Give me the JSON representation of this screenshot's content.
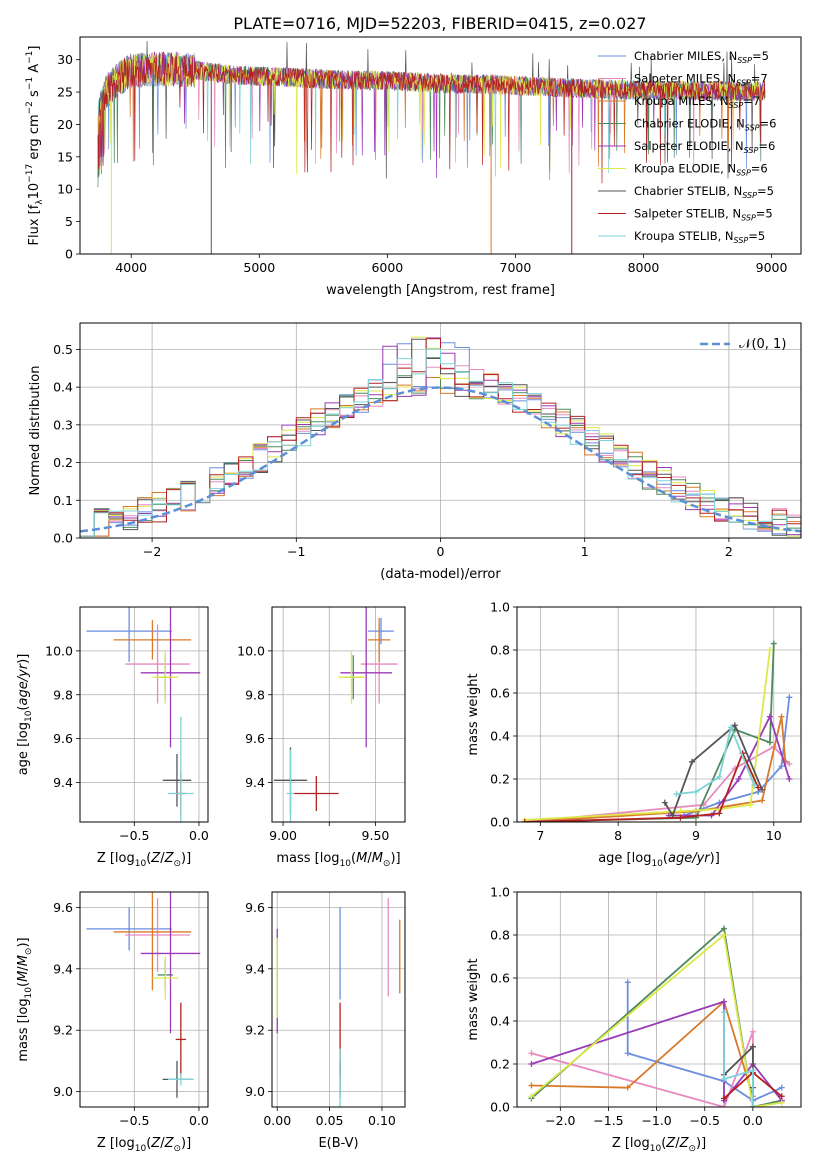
{
  "figure_title": "PLATE=0716, MJD=52203, FIBERID=0415, z=0.027",
  "series_colors": [
    "#6a8ee0",
    "#e88ac0",
    "#d87a2a",
    "#4e8a5e",
    "#9a3ab8",
    "#dde84a",
    "#555555",
    "#b22222",
    "#7fd3d8"
  ],
  "chart_data": [
    {
      "id": "spectrum",
      "type": "line",
      "xlabel": "wavelength [Angstrom, rest frame]",
      "ylabel": "Flux [f_λ 10^−17 erg cm^−2 s^−1 A^−1]",
      "xlim": [
        3600,
        9230
      ],
      "ylim": [
        0,
        33.5
      ],
      "xticks": [
        4000,
        5000,
        6000,
        7000,
        8000,
        9000
      ],
      "yticks": [
        0,
        5,
        10,
        15,
        20,
        25,
        30
      ],
      "grid": false,
      "legend_position": "upper right",
      "legend": [
        {
          "label": "Chabrier MILES, N",
          "sub": "SSP",
          "tail": "=5",
          "color": "#6a8ee0"
        },
        {
          "label": "Salpeter MILES, N",
          "sub": "SSP",
          "tail": "=7",
          "color": "#e88ac0"
        },
        {
          "label": "Kroupa MILES, N",
          "sub": "SSP",
          "tail": "=7",
          "color": "#d87a2a"
        },
        {
          "label": "Chabrier ELODIE, N",
          "sub": "SSP",
          "tail": "=6",
          "color": "#4e8a5e"
        },
        {
          "label": "Salpeter ELODIE, N",
          "sub": "SSP",
          "tail": "=6",
          "color": "#9a3ab8"
        },
        {
          "label": "Kroupa ELODIE, N",
          "sub": "SSP",
          "tail": "=6",
          "color": "#dde84a"
        },
        {
          "label": "Chabrier STELIB, N",
          "sub": "SSP",
          "tail": "=5",
          "color": "#555555"
        },
        {
          "label": "Salpeter STELIB, N",
          "sub": "SSP",
          "tail": "=5",
          "color": "#b22222"
        },
        {
          "label": "Kroupa STELIB, N",
          "sub": "SSP",
          "tail": "=5",
          "color": "#7fd3d8"
        }
      ],
      "continuum": [
        [
          3740,
          21
        ],
        [
          3800,
          25
        ],
        [
          3900,
          27
        ],
        [
          4000,
          28.3
        ],
        [
          4200,
          28.5
        ],
        [
          4500,
          28.4
        ],
        [
          4800,
          27.6
        ],
        [
          5200,
          27.3
        ],
        [
          5600,
          26.9
        ],
        [
          6000,
          26.8
        ],
        [
          6400,
          26.3
        ],
        [
          6800,
          26.2
        ],
        [
          7200,
          25.8
        ],
        [
          7600,
          25.5
        ],
        [
          8000,
          25.3
        ],
        [
          8400,
          25.2
        ],
        [
          8800,
          25.1
        ],
        [
          8950,
          25.3
        ]
      ],
      "wavelength_range": [
        3740,
        8950
      ],
      "drops": [
        [
          3845,
          0
        ],
        [
          4625,
          0
        ],
        [
          6810,
          0
        ],
        [
          7440,
          0
        ]
      ]
    },
    {
      "id": "residuals",
      "type": "histogram",
      "xlabel": "(data-model)/error",
      "ylabel": "Normed distribution",
      "xlim": [
        -2.5,
        2.5
      ],
      "ylim": [
        0,
        0.57
      ],
      "xticks": [
        -2,
        -1,
        0,
        1,
        2
      ],
      "xtick_labels": [
        "−2",
        "−1",
        "0",
        "1",
        "2"
      ],
      "yticks": [
        0,
        0.1,
        0.2,
        0.3,
        0.4,
        0.5
      ],
      "ytick_labels": [
        "0.0",
        "0.1",
        "0.2",
        "0.3",
        "0.4",
        "0.5"
      ],
      "grid": true,
      "bin_width": 0.1,
      "legend": [
        {
          "label": "𝒩(0, 1)",
          "color": "#5b8fd6",
          "style": "dashed"
        }
      ],
      "legend_position": "upper right",
      "gaussian": {
        "mean": 0,
        "sigma": 1,
        "color": "#5b8fd6"
      }
    },
    {
      "id": "age-vs-Z",
      "type": "errorbar",
      "xlabel": "Z [log10(Z/Z⊙)]",
      "ylabel": "age [log10(age/yr)]",
      "xlim": [
        -0.92,
        0.07
      ],
      "ylim": [
        9.22,
        10.2
      ],
      "xticks": [
        -0.5,
        0.0
      ],
      "xtick_labels": [
        "−0.5",
        "0.0"
      ],
      "yticks": [
        9.4,
        9.6,
        9.8,
        10.0
      ],
      "ytick_labels": [
        "9.4",
        "9.6",
        "9.8",
        "10.0"
      ],
      "grid": true,
      "points": [
        {
          "x": -0.54,
          "xerr": 0.33,
          "y": 10.09,
          "yerr": 0.14,
          "color": "#6a8ee0"
        },
        {
          "x": -0.32,
          "xerr": 0.25,
          "y": 9.94,
          "yerr": 0.18,
          "color": "#e88ac0"
        },
        {
          "x": -0.36,
          "xerr": 0.3,
          "y": 10.05,
          "yerr": 0.09,
          "color": "#d87a2a"
        },
        {
          "x": -0.26,
          "xerr": 0.06,
          "y": 9.88,
          "yerr": 0.1,
          "color": "#4e8a5e"
        },
        {
          "x": -0.22,
          "xerr": 0.23,
          "y": 9.9,
          "yerr": 0.34,
          "color": "#9a3ab8"
        },
        {
          "x": -0.26,
          "xerr": 0.1,
          "y": 9.88,
          "yerr": 0.12,
          "color": "#dde84a"
        },
        {
          "x": -0.17,
          "xerr": 0.11,
          "y": 9.41,
          "yerr": 0.12,
          "color": "#555555"
        },
        {
          "x": -0.14,
          "xerr": 0.04,
          "y": 9.35,
          "yerr": 0.1,
          "color": "#b22222"
        },
        {
          "x": -0.14,
          "xerr": 0.1,
          "y": 9.35,
          "yerr": 0.35,
          "color": "#7fd3d8"
        }
      ]
    },
    {
      "id": "age-vs-mass",
      "type": "errorbar",
      "xlabel": "mass [log10(M/M⊙)]",
      "ylabel": "",
      "xlim": [
        8.94,
        9.66
      ],
      "ylim": [
        9.22,
        10.2
      ],
      "xticks": [
        9.0,
        9.25,
        9.5
      ],
      "xtick_labels": [
        "9.00",
        "",
        "9.50"
      ],
      "yticks": [
        9.4,
        9.6,
        9.8,
        10.0
      ],
      "ytick_labels": [
        "9.4",
        "9.6",
        "9.8",
        "10.0"
      ],
      "grid": true,
      "points": [
        {
          "x": 9.53,
          "xerr": 0.07,
          "y": 10.09,
          "yerr": 0.06,
          "color": "#6a8ee0"
        },
        {
          "x": 9.52,
          "xerr": 0.1,
          "y": 9.94,
          "yerr": 0.18,
          "color": "#e88ac0"
        },
        {
          "x": 9.52,
          "xerr": 0.06,
          "y": 10.05,
          "yerr": 0.1,
          "color": "#d87a2a"
        },
        {
          "x": 9.38,
          "xerr": 0.05,
          "y": 9.88,
          "yerr": 0.1,
          "color": "#4e8a5e"
        },
        {
          "x": 9.45,
          "xerr": 0.14,
          "y": 9.9,
          "yerr": 0.34,
          "color": "#9a3ab8"
        },
        {
          "x": 9.37,
          "xerr": 0.07,
          "y": 9.88,
          "yerr": 0.12,
          "color": "#dde84a"
        },
        {
          "x": 9.04,
          "xerr": 0.09,
          "y": 9.41,
          "yerr": 0.15,
          "color": "#555555"
        },
        {
          "x": 9.18,
          "xerr": 0.12,
          "y": 9.35,
          "yerr": 0.08,
          "color": "#b22222"
        },
        {
          "x": 9.04,
          "xerr": 0.02,
          "y": 9.35,
          "yerr": 0.2,
          "color": "#7fd3d8"
        }
      ]
    },
    {
      "id": "weight-vs-age",
      "type": "line",
      "xlabel": "age [log10(age/yr)]",
      "ylabel": "mass weight",
      "xlim": [
        6.7,
        10.35
      ],
      "ylim": [
        0,
        1
      ],
      "xticks": [
        7,
        8,
        9,
        10
      ],
      "xtick_labels": [
        "7",
        "8",
        "9",
        "10"
      ],
      "yticks": [
        0,
        0.2,
        0.4,
        0.6,
        0.8,
        1.0
      ],
      "ytick_labels": [
        "0.0",
        "0.2",
        "0.4",
        "0.6",
        "0.8",
        "1.0"
      ],
      "grid": true,
      "series": [
        {
          "color": "#6a8ee0",
          "x": [
            8.85,
            9.3,
            9.8,
            10.1,
            10.2
          ],
          "y": [
            0.03,
            0.09,
            0.14,
            0.26,
            0.58
          ]
        },
        {
          "color": "#e88ac0",
          "x": [
            6.8,
            9.1,
            9.5,
            10.0,
            10.2
          ],
          "y": [
            0.0,
            0.08,
            0.25,
            0.35,
            0.27
          ]
        },
        {
          "color": "#d87a2a",
          "x": [
            6.8,
            9.0,
            9.85,
            10.1,
            10.15
          ],
          "y": [
            0.0,
            0.05,
            0.1,
            0.49,
            0.28
          ]
        },
        {
          "color": "#4e8a5e",
          "x": [
            6.8,
            9.0,
            9.5,
            9.95,
            10.0
          ],
          "y": [
            0.0,
            0.02,
            0.43,
            0.37,
            0.83
          ]
        },
        {
          "color": "#9a3ab8",
          "x": [
            8.65,
            9.2,
            9.55,
            9.95,
            10.2
          ],
          "y": [
            0.03,
            0.03,
            0.2,
            0.49,
            0.2
          ]
        },
        {
          "color": "#dde84a",
          "x": [
            6.8,
            8.8,
            9.3,
            9.7,
            9.95
          ],
          "y": [
            0.01,
            0.05,
            0.06,
            0.08,
            0.8
          ]
        },
        {
          "color": "#555555",
          "x": [
            8.6,
            8.7,
            8.95,
            9.5,
            9.85
          ],
          "y": [
            0.09,
            0.03,
            0.28,
            0.45,
            0.15
          ]
        },
        {
          "color": "#b22222",
          "x": [
            6.8,
            8.8,
            9.3,
            9.6,
            9.8
          ],
          "y": [
            0.0,
            0.02,
            0.04,
            0.32,
            0.16
          ]
        },
        {
          "color": "#7fd3d8",
          "x": [
            8.75,
            9.0,
            9.3,
            9.45,
            9.75
          ],
          "y": [
            0.13,
            0.14,
            0.21,
            0.44,
            0.17
          ]
        }
      ]
    },
    {
      "id": "mass-vs-Z",
      "type": "errorbar",
      "xlabel": "Z [log10(Z/Z⊙)]",
      "ylabel": "mass [log10(M/M⊙)]",
      "xlim": [
        -0.92,
        0.07
      ],
      "ylim": [
        8.95,
        9.65
      ],
      "xticks": [
        -0.5,
        0.0
      ],
      "xtick_labels": [
        "−0.5",
        "0.0"
      ],
      "yticks": [
        9.0,
        9.2,
        9.4,
        9.6
      ],
      "ytick_labels": [
        "9.0",
        "9.2",
        "9.4",
        "9.6"
      ],
      "grid": true,
      "points": [
        {
          "x": -0.54,
          "xerr": 0.33,
          "y": 9.53,
          "yerr": 0.07,
          "color": "#6a8ee0"
        },
        {
          "x": -0.32,
          "xerr": 0.25,
          "y": 9.51,
          "yerr": 0.12,
          "color": "#e88ac0"
        },
        {
          "x": -0.36,
          "xerr": 0.3,
          "y": 9.52,
          "yerr": 0.19,
          "color": "#d87a2a"
        },
        {
          "x": -0.26,
          "xerr": 0.06,
          "y": 9.38,
          "yerr": 0.05,
          "color": "#4e8a5e"
        },
        {
          "x": -0.22,
          "xerr": 0.23,
          "y": 9.45,
          "yerr": 0.26,
          "color": "#9a3ab8"
        },
        {
          "x": -0.26,
          "xerr": 0.1,
          "y": 9.37,
          "yerr": 0.07,
          "color": "#dde84a"
        },
        {
          "x": -0.17,
          "xerr": 0.11,
          "y": 9.04,
          "yerr": 0.06,
          "color": "#555555"
        },
        {
          "x": -0.14,
          "xerr": 0.04,
          "y": 9.17,
          "yerr": 0.12,
          "color": "#b22222"
        },
        {
          "x": -0.14,
          "xerr": 0.1,
          "y": 9.04,
          "yerr": 0.02,
          "color": "#7fd3d8"
        }
      ]
    },
    {
      "id": "mass-vs-EBV",
      "type": "errorbar",
      "xlabel": "E(B-V)",
      "ylabel": "",
      "xlim": [
        -0.005,
        0.122
      ],
      "ylim": [
        8.95,
        9.65
      ],
      "xticks": [
        0.0,
        0.05,
        0.1
      ],
      "xtick_labels": [
        "0.00",
        "0.05",
        "0.10"
      ],
      "yticks": [
        9.0,
        9.2,
        9.4,
        9.6
      ],
      "ytick_labels": [
        "9.0",
        "9.2",
        "9.4",
        "9.6"
      ],
      "grid": true,
      "points": [
        {
          "x": 0.06,
          "xerr": 0,
          "y": 9.45,
          "yerr": 0.15,
          "color": "#6a8ee0"
        },
        {
          "x": 0.106,
          "xerr": 0,
          "y": 9.47,
          "yerr": 0.16,
          "color": "#e88ac0"
        },
        {
          "x": 0.117,
          "xerr": 0,
          "y": 9.44,
          "yerr": 0.12,
          "color": "#d87a2a"
        },
        {
          "x": 0.0,
          "xerr": 0,
          "y": 9.38,
          "yerr": 0.12,
          "color": "#4e8a5e"
        },
        {
          "x": 0.0,
          "xerr": 0,
          "y": 9.36,
          "yerr": 0.17,
          "color": "#9a3ab8"
        },
        {
          "x": 0.0,
          "xerr": 0,
          "y": 9.37,
          "yerr": 0.13,
          "color": "#dde84a"
        },
        {
          "x": 0.06,
          "xerr": 0,
          "y": 9.04,
          "yerr": 0.06,
          "color": "#555555"
        },
        {
          "x": 0.06,
          "xerr": 0,
          "y": 9.17,
          "yerr": 0.12,
          "color": "#b22222"
        },
        {
          "x": 0.06,
          "xerr": 0,
          "y": 9.04,
          "yerr": 0.1,
          "color": "#7fd3d8"
        }
      ]
    },
    {
      "id": "weight-vs-Z",
      "type": "line",
      "xlabel": "Z [log10(Z/Z⊙)]",
      "ylabel": "mass weight",
      "xlim": [
        -2.45,
        0.5
      ],
      "ylim": [
        0,
        1
      ],
      "xticks": [
        -2.0,
        -1.5,
        -1.0,
        -0.5,
        0.0
      ],
      "xtick_labels": [
        "−2.0",
        "−1.5",
        "−1.0",
        "−0.5",
        "0.0"
      ],
      "yticks": [
        0,
        0.2,
        0.4,
        0.6,
        0.8,
        1.0
      ],
      "ytick_labels": [
        "0.0",
        "0.2",
        "0.4",
        "0.6",
        "0.8",
        "1.0"
      ],
      "grid": true,
      "series": [
        {
          "color": "#6a8ee0",
          "x": [
            -1.3,
            -1.3,
            -0.3,
            0.0,
            0.3
          ],
          "y": [
            0.58,
            0.25,
            0.12,
            0.03,
            0.09
          ]
        },
        {
          "color": "#e88ac0",
          "x": [
            -2.3,
            -0.3,
            0.0,
            0.0,
            0.0
          ],
          "y": [
            0.25,
            0.0,
            0.35,
            0.2,
            0.0
          ]
        },
        {
          "color": "#d87a2a",
          "x": [
            -2.3,
            -1.3,
            -0.3,
            0.0,
            0.0
          ],
          "y": [
            0.1,
            0.09,
            0.49,
            0.05,
            0.28
          ]
        },
        {
          "color": "#4e8a5e",
          "x": [
            -2.3,
            -0.3,
            0.0,
            0.3
          ],
          "y": [
            0.04,
            0.83,
            0.0,
            0.03
          ]
        },
        {
          "color": "#9a3ab8",
          "x": [
            -2.3,
            -0.3,
            -0.3,
            0.0,
            0.3
          ],
          "y": [
            0.2,
            0.49,
            0.03,
            0.2,
            0.03
          ]
        },
        {
          "color": "#dde84a",
          "x": [
            -2.3,
            -0.3,
            0.0,
            0.3
          ],
          "y": [
            0.05,
            0.8,
            0.0,
            0.02
          ]
        },
        {
          "color": "#555555",
          "x": [
            -0.3,
            0.0,
            0.0,
            0.0
          ],
          "y": [
            0.15,
            0.28,
            0.09,
            0.0
          ]
        },
        {
          "color": "#b22222",
          "x": [
            -0.3,
            0.0,
            0.3
          ],
          "y": [
            0.04,
            0.16,
            0.05
          ]
        },
        {
          "color": "#7fd3d8",
          "x": [
            -0.3,
            -0.3,
            0.0,
            0.0
          ],
          "y": [
            0.44,
            0.13,
            0.17,
            0.0
          ]
        }
      ]
    }
  ]
}
